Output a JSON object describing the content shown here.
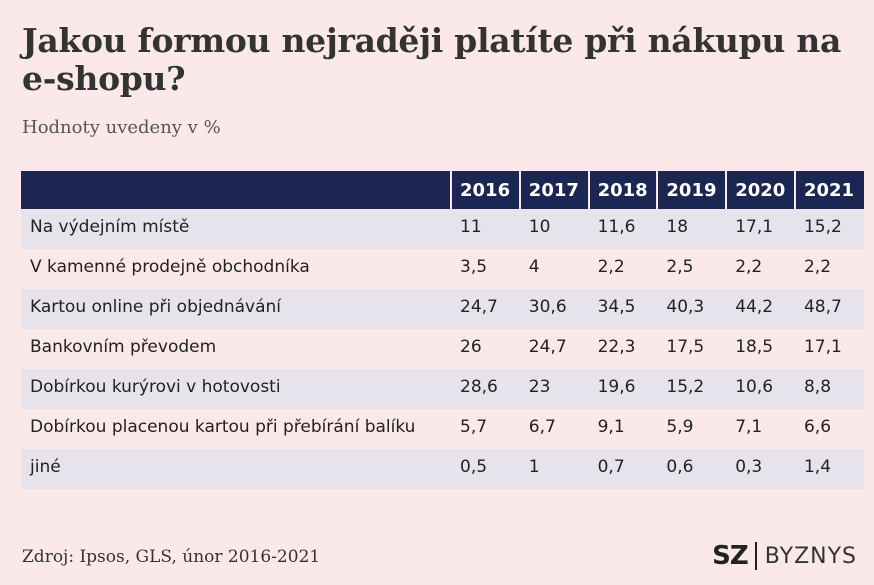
{
  "chart_data": {
    "type": "table",
    "title": "Jakou formou nejraději platíte při nákupu na e-shopu?",
    "subtitle": "Hodnoty uvedeny v %",
    "columns": [
      "2016",
      "2017",
      "2018",
      "2019",
      "2020",
      "2021"
    ],
    "rows": [
      {
        "label": "Na výdejním místě",
        "values": [
          "11",
          "10",
          "11,6",
          "18",
          "17,1",
          "15,2"
        ]
      },
      {
        "label": "V kamenné prodejně obchodníka",
        "values": [
          "3,5",
          "4",
          "2,2",
          "2,5",
          "2,2",
          "2,2"
        ]
      },
      {
        "label": "Kartou online při objednávání",
        "values": [
          "24,7",
          "30,6",
          "34,5",
          "40,3",
          "44,2",
          "48,7"
        ]
      },
      {
        "label": "Bankovním převodem",
        "values": [
          "26",
          "24,7",
          "22,3",
          "17,5",
          "18,5",
          "17,1"
        ]
      },
      {
        "label": "Dobírkou kurýrovi v hotovosti",
        "values": [
          "28,6",
          "23",
          "19,6",
          "15,2",
          "10,6",
          "8,8"
        ]
      },
      {
        "label": "Dobírkou placenou kartou při přebírání balíku",
        "values": [
          "5,7",
          "6,7",
          "9,1",
          "5,9",
          "7,1",
          "6,6"
        ]
      },
      {
        "label": "jiné",
        "values": [
          "0,5",
          "1",
          "0,7",
          "0,6",
          "0,3",
          "1,4"
        ]
      }
    ],
    "source": "Zdroj:  Ipsos, GLS, únor 2016-2021"
  },
  "logo": {
    "left": "SZ",
    "right": "BYZNYS"
  },
  "colors": {
    "background": "#fbe9e9",
    "header": "#1c2653",
    "stripe": "#e6e3ed"
  }
}
